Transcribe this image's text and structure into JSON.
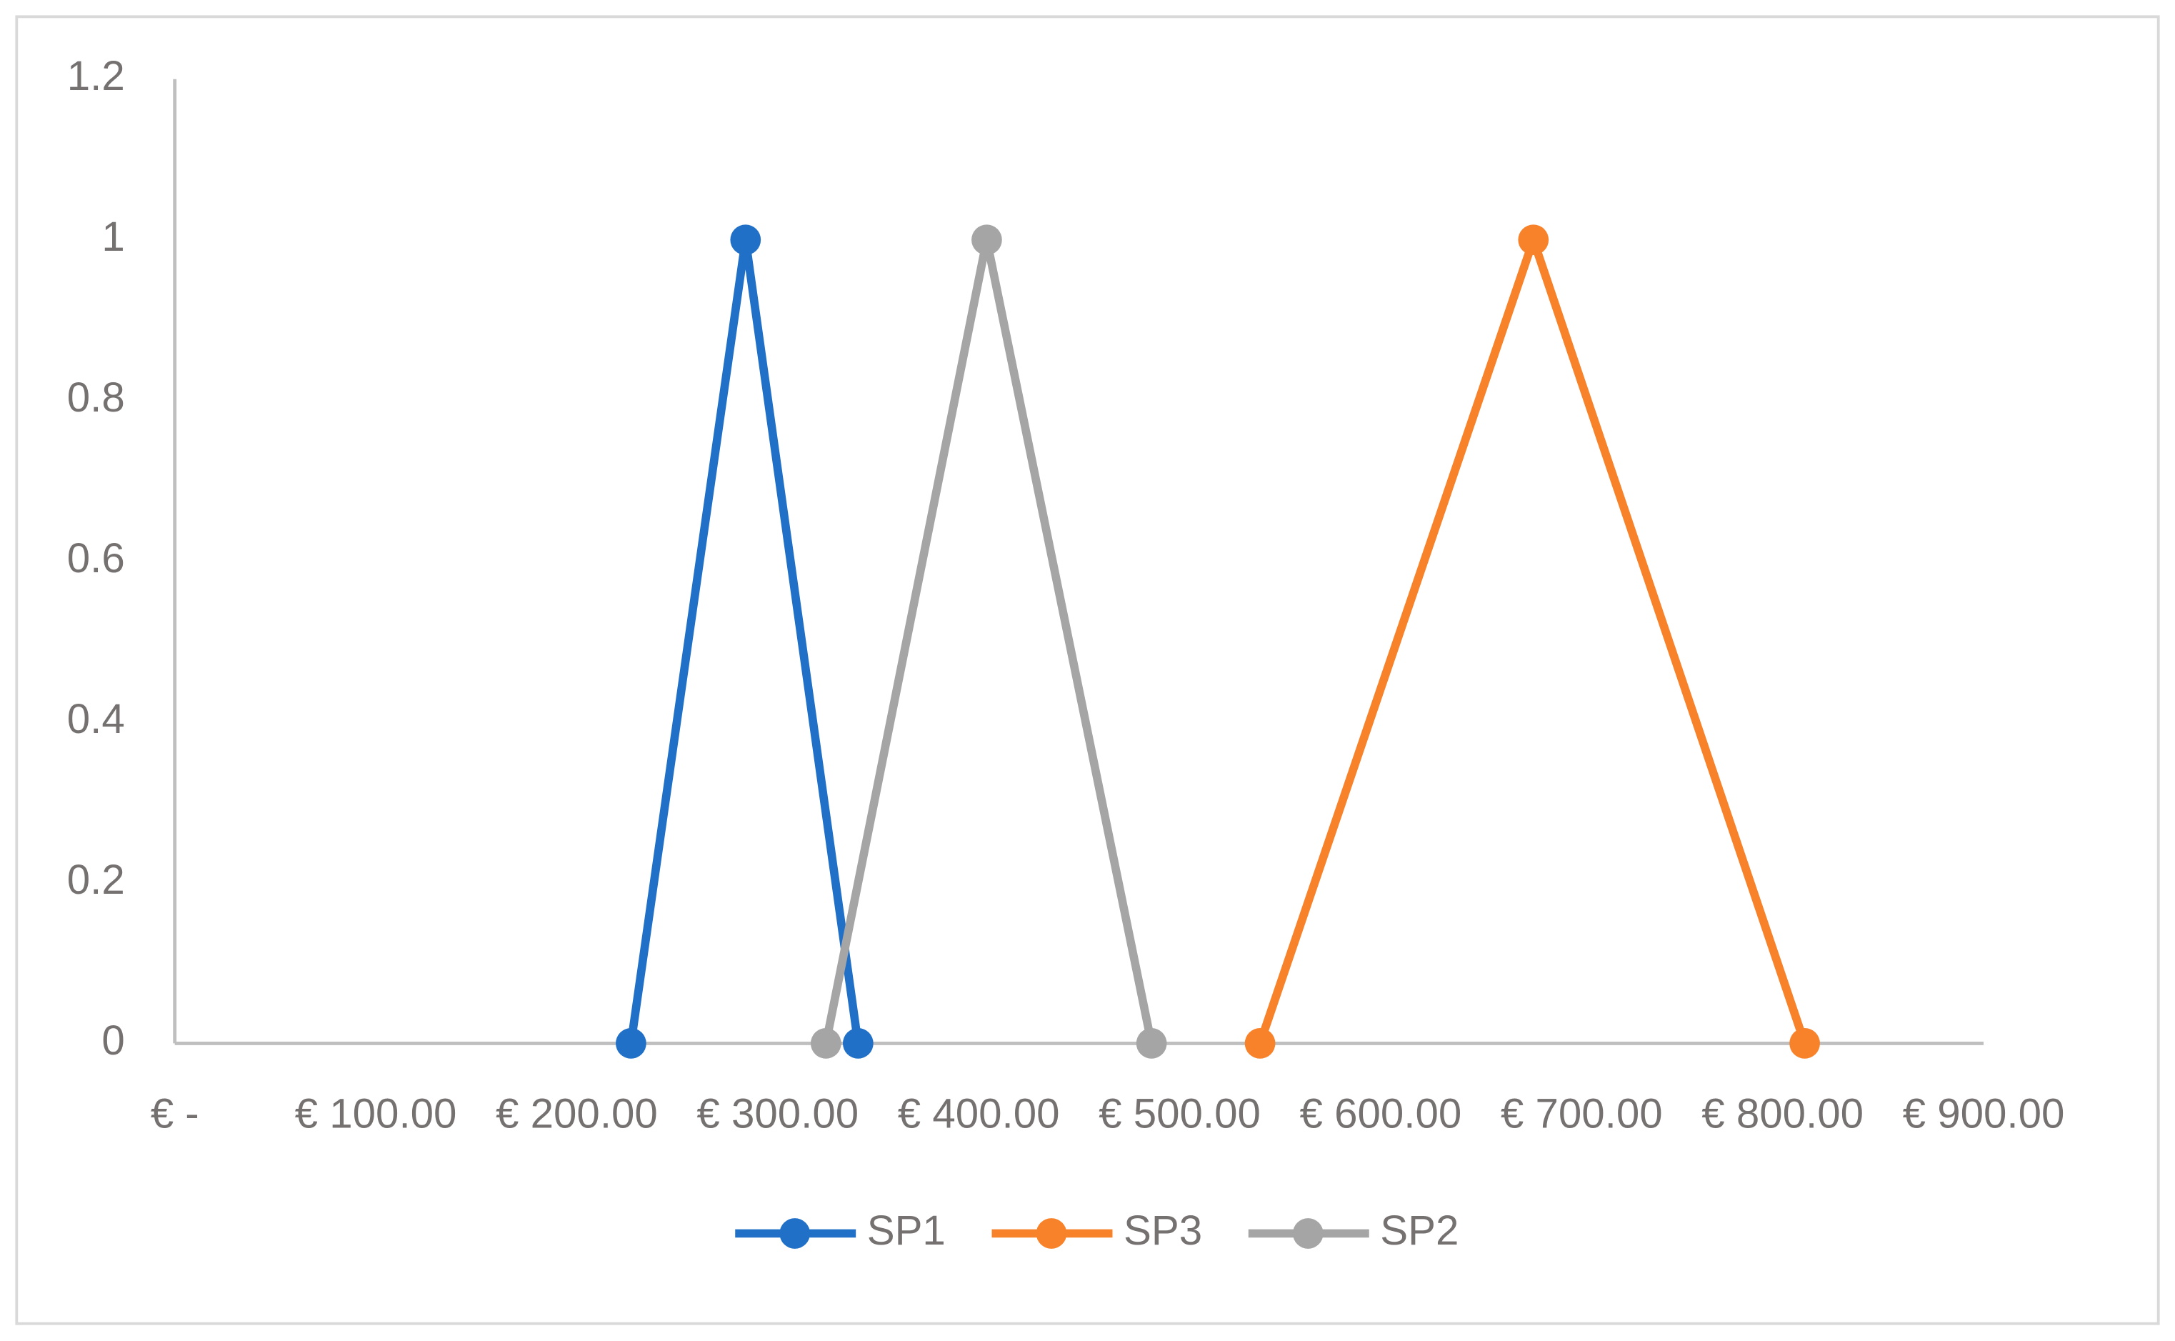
{
  "chart_data": {
    "type": "line",
    "xlim": [
      0,
      900
    ],
    "xticks": [
      {
        "value": 0,
        "label": "€ -"
      },
      {
        "value": 100,
        "label": "€ 100.00"
      },
      {
        "value": 200,
        "label": "€ 200.00"
      },
      {
        "value": 300,
        "label": "€ 300.00"
      },
      {
        "value": 400,
        "label": "€ 400.00"
      },
      {
        "value": 500,
        "label": "€ 500.00"
      },
      {
        "value": 600,
        "label": "€ 600.00"
      },
      {
        "value": 700,
        "label": "€ 700.00"
      },
      {
        "value": 800,
        "label": "€ 800.00"
      },
      {
        "value": 900,
        "label": "€ 900.00"
      }
    ],
    "ylim": [
      0,
      1.2
    ],
    "yticks": [
      0,
      0.2,
      0.4,
      0.6,
      0.8,
      1,
      1.2
    ],
    "grid": false,
    "legend": "bottom",
    "series": [
      {
        "name": "SP1",
        "color": "#2070c8",
        "x": [
          227,
          284,
          340
        ],
        "values": [
          0,
          1,
          0
        ]
      },
      {
        "name": "SP3",
        "color": "#f7822a",
        "x": [
          540,
          676,
          811
        ],
        "values": [
          0,
          1,
          0
        ]
      },
      {
        "name": "SP2",
        "color": "#a5a5a5",
        "x": [
          324,
          404,
          486
        ],
        "values": [
          0,
          1,
          0
        ]
      }
    ]
  }
}
